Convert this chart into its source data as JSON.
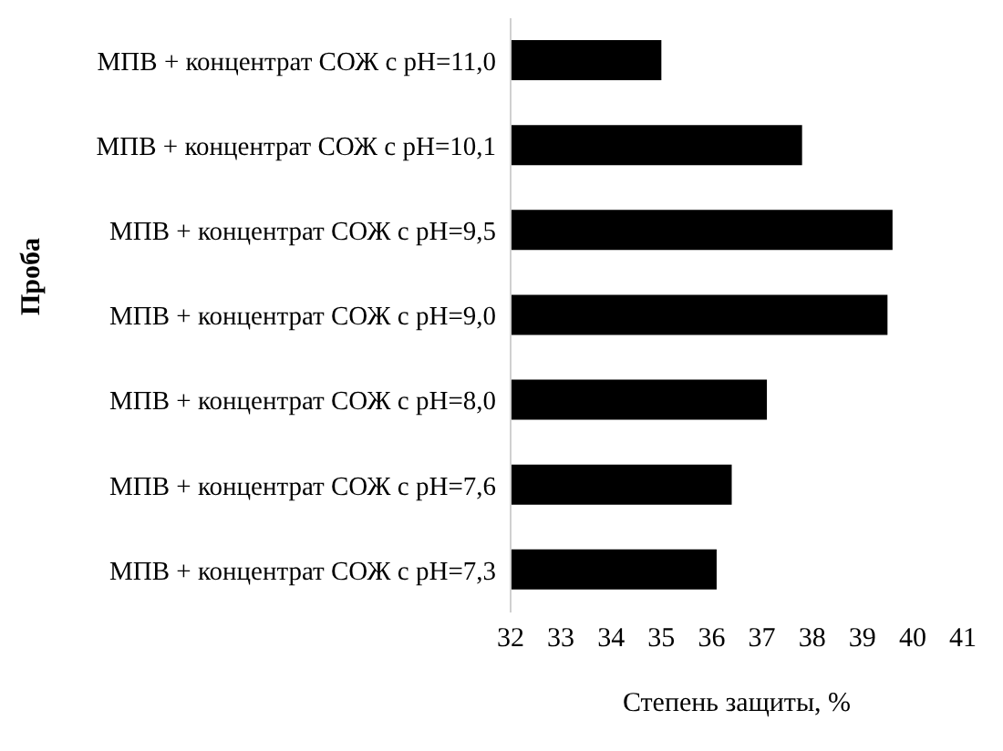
{
  "chart_data": {
    "type": "bar",
    "orientation": "horizontal",
    "xlabel": "Степень защиты, %",
    "ylabel": "Проба",
    "categories": [
      "МПВ + концентрат СОЖ с pH=11,0",
      "МПВ + концентрат СОЖ с pH=10,1",
      "МПВ + концентрат СОЖ с pH=9,5",
      "МПВ + концентрат СОЖ с pH=9,0",
      "МПВ + концентрат СОЖ с pH=8,0",
      "МПВ + концентрат СОЖ с pH=7,6",
      "МПВ + концентрат СОЖ с pH=7,3"
    ],
    "values": [
      35.0,
      37.8,
      39.6,
      39.5,
      37.1,
      36.4,
      36.1
    ],
    "color": "#000000",
    "xlim": [
      32,
      41
    ],
    "xticks": [
      32,
      33,
      34,
      35,
      36,
      37,
      38,
      39,
      40,
      41
    ],
    "grid": false
  }
}
